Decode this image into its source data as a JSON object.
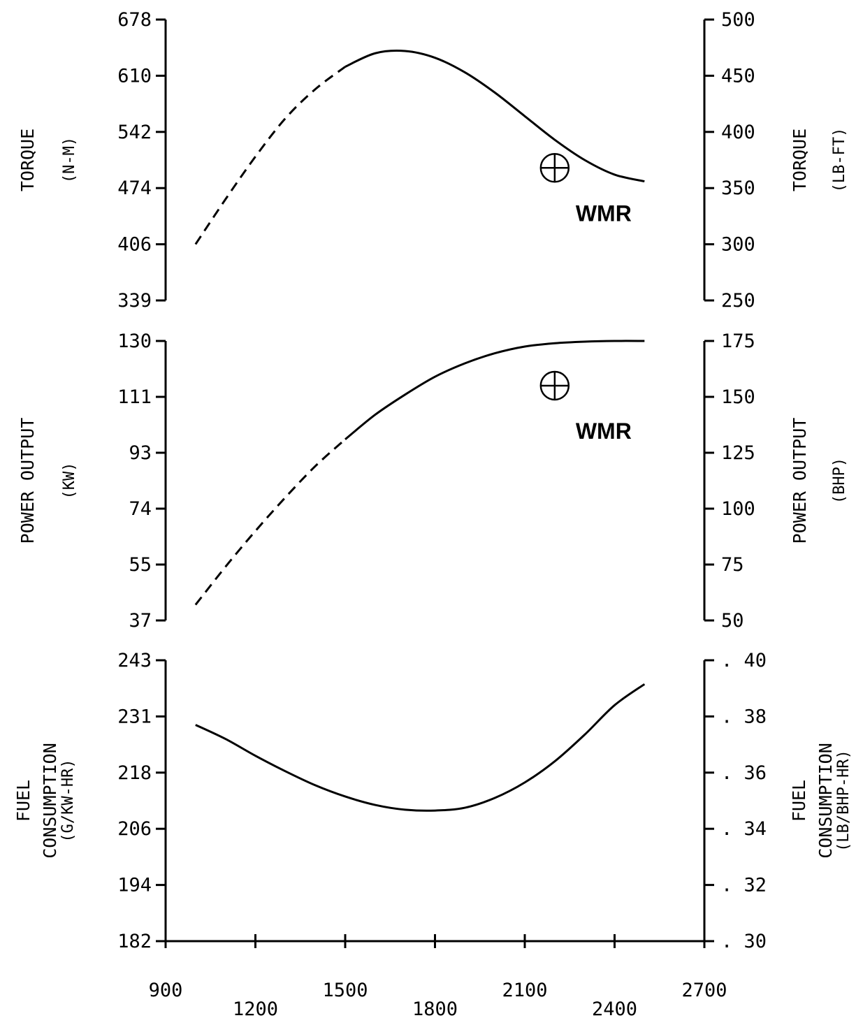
{
  "chart_data": [
    {
      "type": "line",
      "panel": "torque",
      "ylabel_left": "TORQUE",
      "yunit_left": "(N-M)",
      "ylabel_right": "TORQUE",
      "yunit_right": "(LB-FT)",
      "ylim_left": [
        339,
        678
      ],
      "yticks_left": [
        "678",
        "610",
        "542",
        "474",
        "406",
        "339"
      ],
      "ylim_right": [
        250,
        500
      ],
      "yticks_right": [
        "500",
        "450",
        "400",
        "350",
        "300",
        "250"
      ],
      "x": [
        1000,
        1100,
        1200,
        1300,
        1400,
        1500,
        1600,
        1700,
        1800,
        1900,
        2000,
        2100,
        2200,
        2300,
        2400,
        2500
      ],
      "y_right": [
        300,
        340,
        378,
        412,
        438,
        458,
        470,
        472,
        466,
        453,
        435,
        414,
        393,
        375,
        362,
        356
      ],
      "dashed_until_x": 1500,
      "annotation": {
        "label": "WMR",
        "x": 2200,
        "y_right": 368
      }
    },
    {
      "type": "line",
      "panel": "power",
      "ylabel_left": "POWER OUTPUT",
      "yunit_left": "(KW)",
      "ylabel_right": "POWER OUTPUT",
      "yunit_right": "(BHP)",
      "ylim_left": [
        37,
        130
      ],
      "yticks_left": [
        "130",
        "111",
        "93",
        "74",
        "55",
        "37"
      ],
      "ylim_right": [
        50,
        175
      ],
      "yticks_right": [
        "175",
        "150",
        "125",
        "100",
        "75",
        "50"
      ],
      "x": [
        1000,
        1100,
        1200,
        1300,
        1400,
        1500,
        1600,
        1700,
        1800,
        1900,
        2000,
        2100,
        2200,
        2300,
        2400,
        2500
      ],
      "y_right": [
        57,
        74,
        90,
        105,
        119,
        131,
        142,
        151,
        159,
        165,
        169.5,
        172.5,
        174,
        174.7,
        175,
        175
      ],
      "dashed_until_x": 1500,
      "annotation": {
        "label": "WMR",
        "x": 2200,
        "y_right": 155
      }
    },
    {
      "type": "line",
      "panel": "fuel",
      "ylabel_left": "FUEL",
      "yunit_left": "CONSUMPTION (G/KW-HR)",
      "ylabel_right": "FUEL",
      "yunit_right": "CONSUMPTION (LB/BHP-HR)",
      "ylim_left": [
        182,
        243
      ],
      "yticks_left": [
        "243",
        "231",
        "218",
        "206",
        "194",
        "182"
      ],
      "ylim_right": [
        0.3,
        0.4
      ],
      "yticks_right": [
        ". 40",
        ". 38",
        ". 36",
        ". 34",
        ". 32",
        ". 30"
      ],
      "x": [
        1000,
        1100,
        1200,
        1300,
        1400,
        1500,
        1600,
        1700,
        1800,
        1900,
        2000,
        2100,
        2200,
        2300,
        2400,
        2500
      ],
      "y_right": [
        0.377,
        0.372,
        0.366,
        0.3605,
        0.3555,
        0.3515,
        0.3485,
        0.3468,
        0.3465,
        0.3475,
        0.351,
        0.3565,
        0.364,
        0.3735,
        0.384,
        0.3915
      ],
      "dashed_until_x": null,
      "annotation": null
    }
  ],
  "x_axis": {
    "xlim": [
      900,
      2700
    ],
    "tick_labels_upper": [
      "900",
      "1500",
      "2100",
      "2700"
    ],
    "tick_labels_lower": [
      "1200",
      "1800",
      "2400"
    ]
  },
  "icons": {
    "annotation_marker": "circle-cross-icon"
  }
}
